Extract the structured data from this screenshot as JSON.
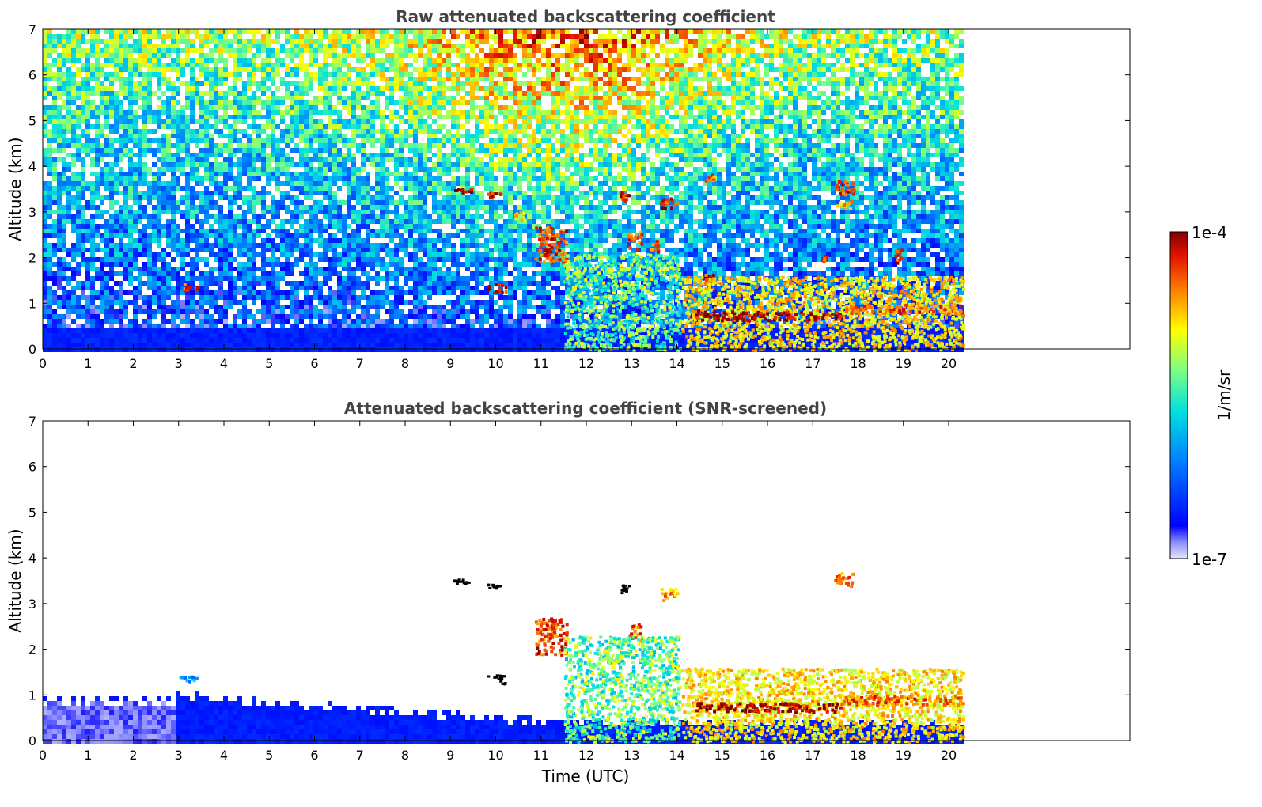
{
  "chart_data": [
    {
      "type": "heatmap",
      "title": "Raw attenuated backscattering coefficient",
      "xlabel": "",
      "ylabel": "Altitude (km)",
      "xlim": [
        0,
        24
      ],
      "ylim": [
        0,
        7
      ],
      "xticks": [
        0,
        1,
        2,
        3,
        4,
        5,
        6,
        7,
        8,
        9,
        10,
        11,
        12,
        13,
        14,
        15,
        16,
        17,
        18,
        19,
        20
      ],
      "yticks": [
        0,
        1,
        2,
        3,
        4,
        5,
        6,
        7
      ],
      "data_end_x": 20.3,
      "grid": false,
      "features": [
        {
          "kind": "cloud",
          "x": [
            9.05,
            9.45
          ],
          "y": [
            3.45,
            3.55
          ],
          "level": 1.0
        },
        {
          "kind": "cloud",
          "x": [
            9.8,
            10.1
          ],
          "y": [
            3.35,
            3.45
          ],
          "level": 0.95
        },
        {
          "kind": "cloud",
          "x": [
            9.8,
            10.2
          ],
          "y": [
            1.25,
            1.45
          ],
          "level": 0.95
        },
        {
          "kind": "cloud",
          "x": [
            3.1,
            3.4
          ],
          "y": [
            1.3,
            1.45
          ],
          "level": 0.9
        },
        {
          "kind": "cloud",
          "x": [
            12.75,
            12.95
          ],
          "y": [
            3.25,
            3.45
          ],
          "level": 0.95
        },
        {
          "kind": "cloud",
          "x": [
            13.6,
            14.0
          ],
          "y": [
            3.1,
            3.35
          ],
          "level": 0.9
        },
        {
          "kind": "cloud",
          "x": [
            14.6,
            14.8
          ],
          "y": [
            3.7,
            3.85
          ],
          "level": 0.85
        },
        {
          "kind": "cloud",
          "x": [
            17.45,
            17.9
          ],
          "y": [
            3.4,
            3.7
          ],
          "level": 0.9
        },
        {
          "kind": "cloud",
          "x": [
            17.5,
            17.9
          ],
          "y": [
            3.1,
            3.3
          ],
          "level": 0.75
        },
        {
          "kind": "cloud",
          "x": [
            10.85,
            11.55
          ],
          "y": [
            1.9,
            2.7
          ],
          "level": 0.88
        },
        {
          "kind": "cloud",
          "x": [
            12.9,
            13.2
          ],
          "y": [
            2.2,
            2.6
          ],
          "level": 0.85
        },
        {
          "kind": "cloud",
          "x": [
            13.4,
            13.6
          ],
          "y": [
            2.1,
            2.4
          ],
          "level": 0.85
        },
        {
          "kind": "cloud",
          "x": [
            14.6,
            14.8
          ],
          "y": [
            1.45,
            1.65
          ],
          "level": 0.9
        },
        {
          "kind": "cloud",
          "x": [
            17.2,
            17.3
          ],
          "y": [
            1.9,
            2.1
          ],
          "level": 0.9
        },
        {
          "kind": "cloud",
          "x": [
            18.8,
            18.95
          ],
          "y": [
            1.85,
            2.2
          ],
          "level": 0.9
        },
        {
          "kind": "cloud",
          "x": [
            10.4,
            10.6
          ],
          "y": [
            2.85,
            3.05
          ],
          "level": 0.7
        },
        {
          "kind": "plume",
          "x": [
            11.5,
            14.05
          ],
          "y": [
            0.0,
            2.1
          ],
          "level": 0.55
        },
        {
          "kind": "layer",
          "x": [
            14.1,
            20.3
          ],
          "y": [
            0.0,
            1.6
          ],
          "level": 0.72
        },
        {
          "kind": "layer",
          "x": [
            14.4,
            17.6
          ],
          "y": [
            0.65,
            0.85
          ],
          "level": 0.98
        },
        {
          "kind": "layer",
          "x": [
            17.6,
            20.3
          ],
          "y": [
            0.8,
            1.0
          ],
          "level": 0.85
        }
      ]
    },
    {
      "type": "heatmap",
      "title": "Attenuated backscattering coefficient (SNR-screened)",
      "xlabel": "Time (UTC)",
      "ylabel": "Altitude (km)",
      "xlim": [
        0,
        24
      ],
      "ylim": [
        0,
        7
      ],
      "xticks": [
        0,
        1,
        2,
        3,
        4,
        5,
        6,
        7,
        8,
        9,
        10,
        11,
        12,
        13,
        14,
        15,
        16,
        17,
        18,
        19,
        20
      ],
      "yticks": [
        0,
        1,
        2,
        3,
        4,
        5,
        6,
        7
      ],
      "data_end_x": 20.3,
      "grid": false,
      "features": [
        {
          "kind": "cloud",
          "x": [
            9.05,
            9.45
          ],
          "y": [
            3.45,
            3.55
          ],
          "level": 1.0
        },
        {
          "kind": "cloud",
          "x": [
            9.8,
            10.1
          ],
          "y": [
            3.35,
            3.45
          ],
          "level": 1.0
        },
        {
          "kind": "cloud",
          "x": [
            9.8,
            10.2
          ],
          "y": [
            1.25,
            1.45
          ],
          "level": 1.0
        },
        {
          "kind": "cloud",
          "x": [
            3.0,
            3.4
          ],
          "y": [
            1.3,
            1.45
          ],
          "level": 0.35
        },
        {
          "kind": "cloud",
          "x": [
            12.75,
            12.95
          ],
          "y": [
            3.25,
            3.45
          ],
          "level": 1.0
        },
        {
          "kind": "cloud",
          "x": [
            13.6,
            14.0
          ],
          "y": [
            3.1,
            3.35
          ],
          "level": 0.8
        },
        {
          "kind": "cloud",
          "x": [
            17.45,
            17.9
          ],
          "y": [
            3.4,
            3.7
          ],
          "level": 0.85
        },
        {
          "kind": "cloud",
          "x": [
            10.85,
            11.55
          ],
          "y": [
            1.9,
            2.7
          ],
          "level": 0.88
        },
        {
          "kind": "cloud",
          "x": [
            12.9,
            13.2
          ],
          "y": [
            2.2,
            2.6
          ],
          "level": 0.85
        },
        {
          "kind": "plume",
          "x": [
            11.5,
            14.05
          ],
          "y": [
            0.0,
            2.3
          ],
          "level": 0.55
        },
        {
          "kind": "layer",
          "x": [
            14.1,
            20.3
          ],
          "y": [
            0.0,
            1.6
          ],
          "level": 0.72
        },
        {
          "kind": "layer",
          "x": [
            14.4,
            17.6
          ],
          "y": [
            0.65,
            0.85
          ],
          "level": 1.0
        },
        {
          "kind": "layer",
          "x": [
            17.6,
            20.3
          ],
          "y": [
            0.8,
            1.0
          ],
          "level": 0.85
        }
      ]
    }
  ],
  "colorbar": {
    "label": "1/m/sr",
    "max_label": "1e-4",
    "min_label": "1e-7",
    "colormap": "jet",
    "range": [
      1e-07,
      0.0001
    ],
    "scale": "log"
  }
}
